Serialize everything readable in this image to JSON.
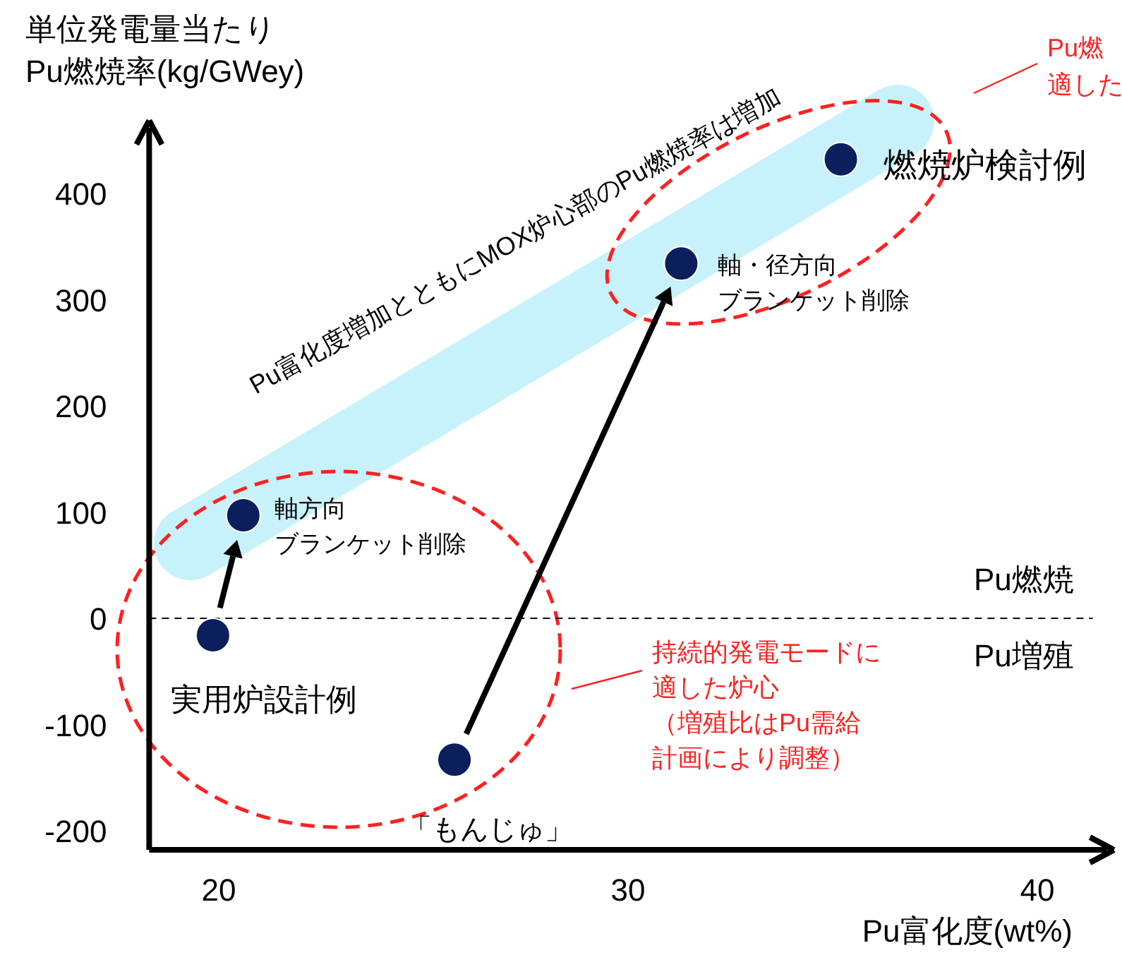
{
  "chart_data": {
    "type": "scatter",
    "ylabel": "単位発電量当たり\nPu燃焼率(kg/GWey)",
    "xlabel": "Pu富化度(wt%)",
    "x": [
      19.86,
      20.6,
      25.76,
      31.3,
      35.2
    ],
    "series": [
      {
        "color": "#0a1f5c",
        "values": [
          -16,
          97,
          -133,
          334,
          432
        ]
      }
    ],
    "marker": "circle",
    "xlim": [
      18.3,
      41.7
    ],
    "ylim": [
      -218,
      462
    ],
    "xticks": [
      20,
      30,
      40
    ],
    "yticks": [
      -200,
      -100,
      0,
      100,
      200,
      300,
      400
    ],
    "ref_lines": [
      {
        "axis": "y",
        "value": 0,
        "line_style": "dashed",
        "color": "#000000"
      }
    ],
    "annotations": [
      {
        "text": "実用炉設計例",
        "x": 19.86,
        "y": -16
      },
      {
        "text": "軸方向ブランケット削除",
        "x": 20.6,
        "y": 97
      },
      {
        "text": "「もんじゅ」",
        "x": 25.76,
        "y": -133
      },
      {
        "text": "軸・径方向ブランケット削除",
        "x": 31.3,
        "y": 334
      },
      {
        "text": "燃焼炉検討例",
        "x": 35.2,
        "y": 432
      },
      "Pu富化度増加とともにMOX炉心部のPu燃焼率は増加",
      "Pu燃焼",
      "Pu増殖",
      "持続的発電モードに適した炉心（増殖比はPu需給計画により調整）",
      "Pu燃適した"
    ]
  }
}
